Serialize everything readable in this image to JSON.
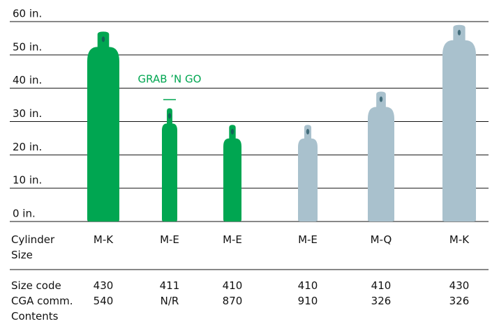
{
  "chart_data": {
    "type": "cylinders",
    "ylim": [
      0,
      60
    ],
    "yticks": [
      {
        "value": 0,
        "label": "0 in."
      },
      {
        "value": 10,
        "label": "10 in."
      },
      {
        "value": 20,
        "label": "20 in."
      },
      {
        "value": 30,
        "label": "30 in."
      },
      {
        "value": 40,
        "label": "40 in."
      },
      {
        "value": 50,
        "label": "50 in."
      },
      {
        "value": 60,
        "label": "60 in."
      }
    ],
    "grid": true,
    "x_label": "Cylinder Size",
    "categories": [
      "M-K",
      "M-E",
      "M-E",
      "M-E",
      "M-Q",
      "M-K"
    ],
    "values": [
      57,
      34,
      29,
      29,
      39,
      59
    ],
    "colors": [
      "#00a651",
      "#00a651",
      "#00a651",
      "#a9c1cd",
      "#a9c1cd",
      "#a9c1cd"
    ],
    "annotation": {
      "text": "GRAB ’N GO",
      "color": "#00a651",
      "index": 1
    },
    "rows": [
      {
        "label": "Size code",
        "values": [
          430,
          411,
          410,
          410,
          410,
          430
        ]
      },
      {
        "label": "CGA comm. Contents",
        "values": [
          540,
          "N/R",
          870,
          910,
          326,
          326
        ]
      }
    ]
  }
}
